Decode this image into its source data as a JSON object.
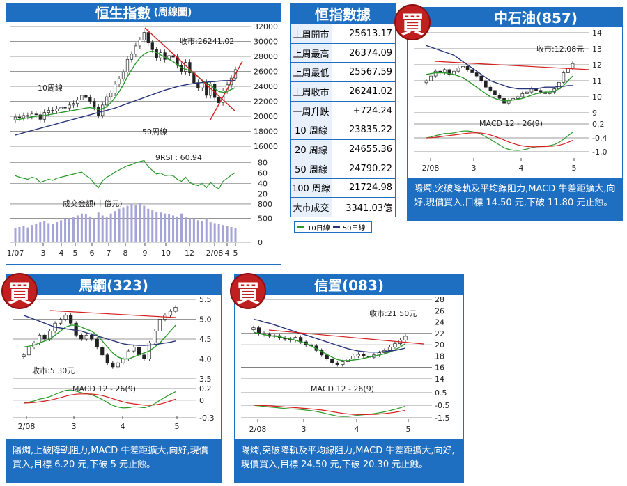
{
  "colors": {
    "blue": "#1e6fc2",
    "red": "#d42020",
    "green": "#2a9a2a",
    "navy": "#28357a",
    "stamp": "#c0201f",
    "bars": "#a4a4d8"
  },
  "hsi": {
    "title": "恒生指數",
    "subtitle": "(周線圖)",
    "close_label": "收市:26241.02",
    "label_10w": "10周線",
    "label_50w": "50周線",
    "rsi_label": "9RSI : 60.94",
    "turnover_label": "成交金額(十億元)",
    "price_ticks": [
      "32000",
      "30000",
      "28000",
      "26000",
      "24000",
      "22000",
      "20000",
      "18000",
      "16000"
    ],
    "rsi_ticks": [
      "80",
      "60",
      "40",
      "20"
    ],
    "vol_ticks": [
      "800",
      "500",
      "0"
    ],
    "x_ticks": [
      "1/07",
      "3",
      "4",
      "5",
      "6",
      "7",
      "8",
      "9",
      "10",
      "12",
      "2/08",
      "4",
      "5"
    ],
    "chart_data": {
      "type": "line",
      "price_range": [
        16000,
        32000
      ],
      "close": [
        19900,
        19800,
        20100,
        20000,
        20300,
        20200,
        19600,
        20500,
        20800,
        20700,
        21000,
        21200,
        21100,
        21500,
        21700,
        22200,
        22800,
        22500,
        22000,
        21200,
        20100,
        21500,
        22600,
        23100,
        24300,
        25000,
        25900,
        27600,
        28300,
        29400,
        30200,
        31200,
        29800,
        28900,
        27800,
        28500,
        27600,
        28100,
        27900,
        26800,
        26000,
        27200,
        25800,
        24500,
        23800,
        24500,
        22800,
        24300,
        22500,
        21800,
        23400,
        24200,
        25100,
        26241
      ],
      "ma10": [
        19500,
        19600,
        19700,
        19800,
        19900,
        20000,
        20050,
        20100,
        20200,
        20300,
        20400,
        20500,
        20600,
        20700,
        20800,
        20900,
        21000,
        21100,
        21150,
        21050,
        20900,
        21000,
        21300,
        21800,
        22500,
        23300,
        24200,
        25300,
        26200,
        27100,
        27800,
        28300,
        28600,
        28700,
        28500,
        28200,
        27900,
        27600,
        27300,
        26900,
        26500,
        26300,
        26100,
        25800,
        25300,
        24800,
        24400,
        24100,
        23700,
        23300,
        23200,
        23300,
        23600,
        23835
      ],
      "ma50": [
        17500,
        17650,
        17800,
        17950,
        18100,
        18250,
        18400,
        18550,
        18700,
        18850,
        19000,
        19150,
        19300,
        19450,
        19600,
        19750,
        19900,
        20050,
        20200,
        20350,
        20500,
        20650,
        20800,
        20950,
        21100,
        21300,
        21500,
        21700,
        21900,
        22100,
        22300,
        22500,
        22700,
        22900,
        23100,
        23300,
        23500,
        23650,
        23800,
        23950,
        24100,
        24200,
        24300,
        24400,
        24450,
        24500,
        24550,
        24600,
        24650,
        24700,
        24740,
        24760,
        24780,
        24790
      ],
      "rsi": [
        55,
        52,
        50,
        48,
        52,
        50,
        42,
        45,
        48,
        46,
        50,
        52,
        54,
        56,
        58,
        60,
        62,
        55,
        50,
        40,
        32,
        45,
        52,
        56,
        62,
        66,
        70,
        74,
        76,
        80,
        82,
        84,
        72,
        65,
        58,
        60,
        55,
        56,
        55,
        48,
        44,
        52,
        42,
        38,
        36,
        40,
        32,
        42,
        34,
        30,
        44,
        50,
        56,
        60.94
      ],
      "turnover": [
        300,
        320,
        350,
        310,
        360,
        380,
        420,
        450,
        400,
        380,
        420,
        460,
        480,
        500,
        520,
        560,
        600,
        580,
        540,
        500,
        620,
        560,
        520,
        600,
        650,
        700,
        720,
        760,
        800,
        780,
        820,
        760,
        700,
        680,
        640,
        620,
        600,
        580,
        560,
        540,
        600,
        520,
        500,
        480,
        460,
        440,
        500,
        420,
        400,
        380,
        360,
        340,
        320,
        300
      ]
    }
  },
  "stats": {
    "title": "恒指數據",
    "rows": [
      {
        "k": "上周開市",
        "v": "25613.17"
      },
      {
        "k": "上周最高",
        "v": "26374.09"
      },
      {
        "k": "上周最低",
        "v": "25567.59"
      },
      {
        "k": "上周收市",
        "v": "26241.02"
      },
      {
        "k": "一周升跌",
        "v": "+724.24"
      },
      {
        "k": "10 周線",
        "v": "23835.22"
      },
      {
        "k": "20 周線",
        "v": "24655.36"
      },
      {
        "k": "50 周線",
        "v": "24790.22"
      },
      {
        "k": "100 周線",
        "v": "21724.98"
      },
      {
        "k": "大市成交",
        "v": "3341.03億"
      }
    ],
    "legend_10": "10日線",
    "legend_50": "50日線"
  },
  "sinopec": {
    "stamp": "買",
    "title": "中石油(857)",
    "close_label": "收市:12.08元",
    "macd_label": "MACD 12 - 26(9)",
    "price_ticks": [
      "14",
      "13",
      "12",
      "11",
      "10",
      "9"
    ],
    "macd_ticks": [
      "0.2",
      "-0.4",
      "-1.0"
    ],
    "x_ticks": [
      "2/08",
      "3",
      "4",
      "5"
    ],
    "comment": "陽燭,突破降軌及平均線阻力,MACD 牛差距擴大,向好,現價買入,目標 14.50 元,下破 11.80 元止蝕。",
    "chart_data": {
      "type": "line",
      "price_range": [
        9,
        14
      ],
      "close": [
        11.0,
        11.3,
        11.6,
        11.5,
        11.7,
        11.4,
        11.6,
        11.8,
        11.9,
        11.7,
        11.5,
        11.3,
        11.0,
        10.6,
        10.4,
        10.1,
        9.9,
        9.6,
        9.8,
        9.9,
        10.0,
        10.2,
        10.3,
        10.5,
        10.4,
        10.3,
        10.2,
        10.3,
        10.5,
        10.9,
        11.5,
        11.8,
        12.08
      ],
      "ma10": [
        11.4,
        11.45,
        11.5,
        11.5,
        11.5,
        11.45,
        11.4,
        11.3,
        11.2,
        11.0,
        10.8,
        10.6,
        10.4,
        10.2,
        10.0,
        9.9,
        9.8,
        9.75,
        9.75,
        9.8,
        9.85,
        9.9,
        10.0,
        10.1,
        10.2,
        10.25,
        10.3,
        10.3,
        10.35,
        10.5,
        10.7,
        11.0,
        11.3
      ],
      "ma50": [
        13.2,
        13.1,
        13.0,
        12.9,
        12.8,
        12.7,
        12.6,
        12.4,
        12.2,
        12.0,
        11.8,
        11.6,
        11.4,
        11.2,
        11.0,
        10.9,
        10.8,
        10.7,
        10.6,
        10.55,
        10.5,
        10.5,
        10.5,
        10.5,
        10.5,
        10.55,
        10.6,
        10.6,
        10.6,
        10.65,
        10.65,
        10.7,
        10.7
      ]
    }
  },
  "maanshan": {
    "stamp": "買",
    "title": "馬鋼(323)",
    "close_label": "收市:5.30元",
    "macd_label": "MACD 12 - 26(9)",
    "price_ticks": [
      "5.5",
      "5.0",
      "4.5",
      "4.0",
      "3.5"
    ],
    "macd_ticks": [
      "0.2",
      "0",
      "-0.3"
    ],
    "x_ticks": [
      "2/08",
      "3",
      "4",
      "5"
    ],
    "comment": "陽燭,上破降軌阻力,MACD 牛差距擴大,向好,現價買入,目標 6.20 元,下破 5 元止蝕。",
    "chart_data": {
      "type": "line",
      "price_range": [
        3.5,
        5.5
      ],
      "close": [
        4.1,
        4.3,
        4.4,
        4.6,
        4.5,
        4.7,
        4.9,
        5.0,
        5.1,
        4.9,
        4.6,
        4.5,
        4.6,
        4.5,
        4.3,
        4.1,
        3.9,
        3.8,
        3.9,
        4.0,
        4.2,
        4.3,
        4.1,
        4.0,
        4.4,
        4.7,
        5.0,
        5.1,
        5.2,
        5.3
      ],
      "ma10": [
        4.3,
        4.32,
        4.35,
        4.4,
        4.45,
        4.5,
        4.6,
        4.7,
        4.8,
        4.85,
        4.85,
        4.8,
        4.75,
        4.7,
        4.6,
        4.45,
        4.3,
        4.15,
        4.05,
        4.0,
        4.0,
        4.05,
        4.1,
        4.15,
        4.2,
        4.3,
        4.4,
        4.55,
        4.7,
        4.85
      ],
      "ma50": [
        5.1,
        5.05,
        5.0,
        4.95,
        4.9,
        4.85,
        4.8,
        4.78,
        4.76,
        4.74,
        4.72,
        4.7,
        4.66,
        4.62,
        4.58,
        4.54,
        4.5,
        4.46,
        4.42,
        4.38,
        4.36,
        4.35,
        4.34,
        4.34,
        4.35,
        4.36,
        4.38,
        4.4,
        4.42,
        4.45
      ]
    }
  },
  "cinda": {
    "stamp": "買",
    "title": "信置(083)",
    "close_label": "收市:21.50元",
    "macd_label": "MACD 12 - 26(9)",
    "price_ticks": [
      "28",
      "26",
      "24",
      "22",
      "20",
      "18",
      "16",
      "14"
    ],
    "macd_ticks": [
      "0.5",
      "-0.5",
      "-1.5"
    ],
    "x_ticks": [
      "2/08",
      "3",
      "4",
      "5"
    ],
    "comment": "陽燭,突破降軌及平均線阻力,MACD 牛差距擴大,向好,現價買入,目標 24.50 元,下破 20.30 元止蝕。",
    "chart_data": {
      "type": "line",
      "price_range": [
        14,
        28
      ],
      "close": [
        23.0,
        22.0,
        21.8,
        21.5,
        21.6,
        21.2,
        21.0,
        20.8,
        21.3,
        20.5,
        20.0,
        19.8,
        19.0,
        18.2,
        17.5,
        16.8,
        16.5,
        17.0,
        17.5,
        18.0,
        18.3,
        18.0,
        17.8,
        18.2,
        18.6,
        19.0,
        19.6,
        20.2,
        20.8,
        21.5
      ],
      "ma10": [
        22.2,
        22.0,
        21.8,
        21.6,
        21.5,
        21.4,
        21.2,
        21.0,
        20.8,
        20.5,
        20.2,
        19.8,
        19.3,
        18.8,
        18.3,
        17.8,
        17.4,
        17.2,
        17.2,
        17.3,
        17.4,
        17.6,
        17.8,
        18.0,
        18.2,
        18.4,
        18.7,
        19.1,
        19.6,
        20.2
      ],
      "ma50": [
        24.5,
        24.3,
        24.0,
        23.8,
        23.5,
        23.2,
        22.9,
        22.6,
        22.3,
        22.0,
        21.7,
        21.4,
        21.1,
        20.8,
        20.5,
        20.2,
        19.9,
        19.6,
        19.3,
        19.1,
        18.9,
        18.8,
        18.7,
        18.7,
        18.7,
        18.8,
        18.9,
        19.0,
        19.2,
        19.4
      ]
    }
  }
}
